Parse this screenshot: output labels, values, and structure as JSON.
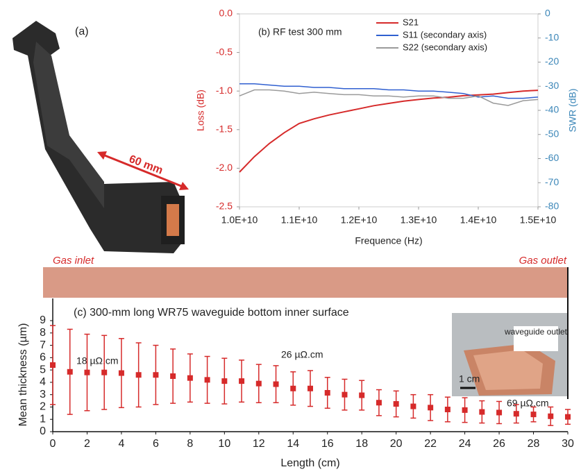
{
  "panel_a": {
    "label": "(a)",
    "dimension": "60 mm"
  },
  "chart_data": [
    {
      "type": "line",
      "title": "(b) RF test 300 mm",
      "xlabel": "Frequence (Hz)",
      "ylabel": "Loss (dB)",
      "y2label": "SWR (dB)",
      "x": [
        10000000000.0,
        10250000000.0,
        10500000000.0,
        10750000000.0,
        11000000000.0,
        11250000000.0,
        11500000000.0,
        11750000000.0,
        12000000000.0,
        12250000000.0,
        12500000000.0,
        12750000000.0,
        13000000000.0,
        13250000000.0,
        13500000000.0,
        13750000000.0,
        14000000000.0,
        14250000000.0,
        14500000000.0,
        14750000000.0,
        15000000000.0
      ],
      "xlim": [
        10000000000.0,
        15000000000.0
      ],
      "xticks": [
        {
          "value": 10000000000.0,
          "label": "1.0E+10"
        },
        {
          "value": 11000000000.0,
          "label": "1.1E+10"
        },
        {
          "value": 12000000000.0,
          "label": "1.2E+10"
        },
        {
          "value": 13000000000.0,
          "label": "1.3E+10"
        },
        {
          "value": 14000000000.0,
          "label": "1.4E+10"
        },
        {
          "value": 15000000000.0,
          "label": "1.5E+10"
        }
      ],
      "ylim": [
        -2.5,
        0
      ],
      "yticks": [
        {
          "value": 0,
          "label": "0.0"
        },
        -0.5,
        {
          "value": -1,
          "label": "-1.0"
        },
        -1.5,
        {
          "value": -2,
          "label": "-2.0"
        },
        -2.5
      ],
      "y2lim": [
        -80,
        0
      ],
      "y2ticks": [
        0,
        -10,
        -20,
        -30,
        -40,
        -50,
        -60,
        -70,
        -80
      ],
      "series": [
        {
          "name": "S21",
          "color": "#d62a2a",
          "values": [
            -2.05,
            -1.85,
            -1.68,
            -1.54,
            -1.42,
            -1.36,
            -1.31,
            -1.27,
            -1.23,
            -1.19,
            -1.16,
            -1.13,
            -1.11,
            -1.09,
            -1.08,
            -1.06,
            -1.05,
            -1.04,
            -1.02,
            -1.0,
            -0.99
          ]
        },
        {
          "name": "S11 (secondary axis)",
          "color": "#2f5fd0",
          "axis": "y2",
          "values": [
            -29,
            -29,
            -29.5,
            -30,
            -30,
            -30.5,
            -30.5,
            -31,
            -31,
            -31,
            -31.5,
            -31.5,
            -32,
            -32,
            -32.5,
            -33,
            -34.5,
            -34,
            -35,
            -35,
            -34.5
          ]
        },
        {
          "name": "S22 (secondary axis)",
          "color": "#9a9a9a",
          "axis": "y2",
          "values": [
            -34,
            -31.5,
            -31.5,
            -32,
            -33,
            -32.5,
            -33,
            -33.5,
            -33.5,
            -34,
            -34,
            -34.5,
            -34,
            -34,
            -35,
            -35,
            -34,
            -37,
            -38,
            -36,
            -35.5
          ]
        }
      ]
    },
    {
      "type": "errorbar",
      "title": "(c) 300-mm long WR75 waveguide bottom inner surface",
      "xlabel": "Length (cm)",
      "ylabel": "Mean thickness (µm)",
      "x": [
        0,
        1,
        2,
        3,
        4,
        5,
        6,
        7,
        8,
        9,
        10,
        11,
        12,
        13,
        14,
        15,
        16,
        17,
        18,
        19,
        20,
        21,
        22,
        23,
        24,
        25,
        26,
        27,
        28,
        29,
        30
      ],
      "values": [
        5.4,
        4.85,
        4.8,
        4.8,
        4.75,
        4.6,
        4.6,
        4.5,
        4.35,
        4.2,
        4.1,
        4.1,
        3.9,
        3.85,
        3.5,
        3.5,
        3.15,
        3.0,
        2.95,
        2.35,
        2.25,
        2.05,
        1.95,
        1.8,
        1.75,
        1.6,
        1.55,
        1.45,
        1.4,
        1.25,
        1.2
      ],
      "errors": [
        3.2,
        3.45,
        3.1,
        3.0,
        2.8,
        2.6,
        2.4,
        2.2,
        1.95,
        1.9,
        1.85,
        1.7,
        1.55,
        1.5,
        1.35,
        1.45,
        1.25,
        1.25,
        1.2,
        1.05,
        1.05,
        0.95,
        1.05,
        1.0,
        1.0,
        0.9,
        0.9,
        0.75,
        0.6,
        0.75,
        0.6
      ],
      "color": "#d62a2a",
      "xlim": [
        0,
        30
      ],
      "xticks": [
        0,
        2,
        4,
        6,
        8,
        10,
        12,
        14,
        16,
        18,
        20,
        22,
        24,
        26,
        28,
        30
      ],
      "ylim": [
        0,
        9
      ],
      "yticks": [
        0,
        1,
        2,
        3,
        4,
        5,
        6,
        7,
        8,
        9
      ],
      "annotations": [
        "Gas inlet",
        "Gas outlet",
        "18 µΩ.cm",
        "26 µΩ.cm",
        "69 µΩ.cm",
        "waveguide outlet",
        "1 cm"
      ]
    }
  ]
}
